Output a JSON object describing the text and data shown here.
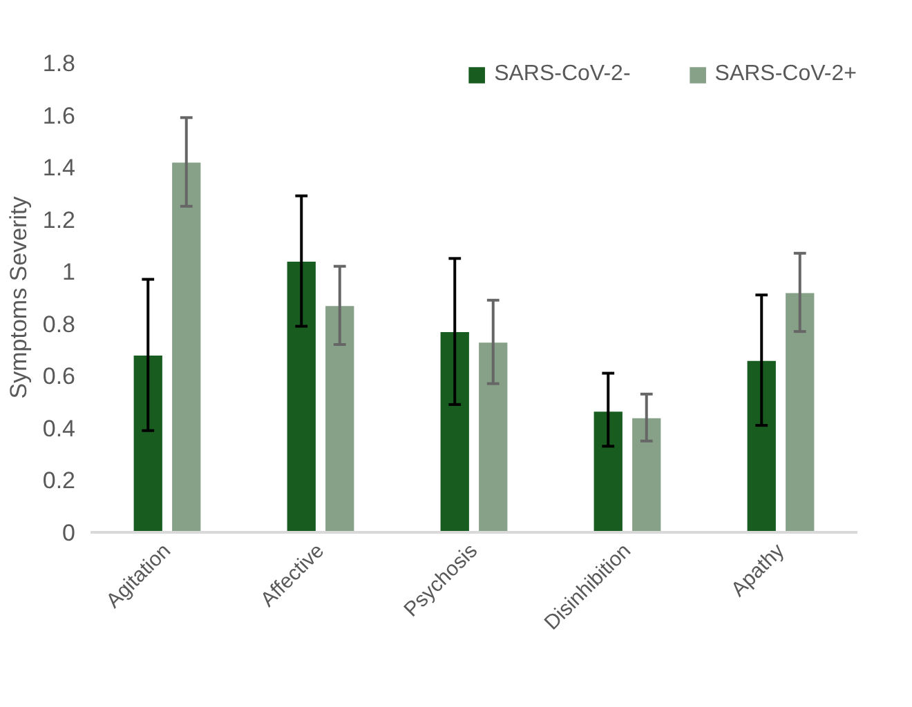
{
  "chart_data": {
    "type": "bar",
    "ylabel": "Symptoms Severity",
    "categories": [
      "Agitation",
      "Affective",
      "Psychosis",
      "Disinhibition",
      "Apathy"
    ],
    "series": [
      {
        "name": "SARS-CoV-2-",
        "color": "#185c20",
        "values": [
          0.68,
          1.04,
          0.77,
          0.465,
          0.66
        ],
        "errors": [
          [
            0.39,
            0.97
          ],
          [
            0.79,
            1.29
          ],
          [
            0.49,
            1.05
          ],
          [
            0.33,
            0.61
          ],
          [
            0.41,
            0.91
          ]
        ]
      },
      {
        "name": "SARS-CoV-2+",
        "color": "#87a088",
        "values": [
          1.42,
          0.87,
          0.73,
          0.44,
          0.92
        ],
        "errors": [
          [
            1.25,
            1.59
          ],
          [
            0.72,
            1.02
          ],
          [
            0.57,
            0.89
          ],
          [
            0.35,
            0.53
          ],
          [
            0.77,
            1.07
          ]
        ]
      }
    ],
    "ylim": [
      0,
      1.8
    ],
    "yticks": [
      0,
      0.2,
      0.4,
      0.6,
      0.8,
      1,
      1.2,
      1.4,
      1.6,
      1.8
    ],
    "grid": false,
    "legend": "top right"
  }
}
